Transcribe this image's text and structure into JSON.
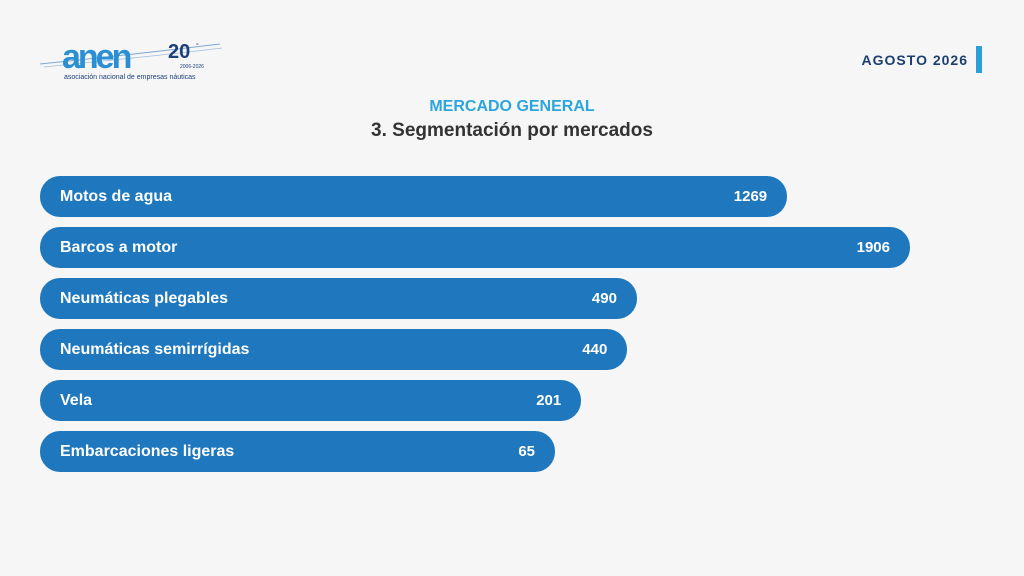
{
  "header": {
    "logo_tagline": "asociación nacional de empresas náuticas",
    "logo_years": "2006-2026",
    "date_label": "AGOSTO 2026"
  },
  "colors": {
    "bar": "#1f78be",
    "accent": "#2a9fd9",
    "subtitle": "#2ba6dc"
  },
  "chart_data": {
    "type": "bar",
    "orientation": "horizontal",
    "subtitle": "MERCADO GENERAL",
    "title": "3. Segmentación por mercados",
    "categories": [
      "Motos de agua",
      "Barcos a motor",
      "Neumáticas plegables",
      "Neumáticas semirrígidas",
      "Vela",
      "Embarcaciones ligeras"
    ],
    "values": [
      1269,
      1906,
      490,
      440,
      201,
      65
    ],
    "data_labels": [
      "1269",
      "1906",
      "490",
      "440",
      "201",
      "65"
    ],
    "grid": false,
    "legend": "none"
  }
}
